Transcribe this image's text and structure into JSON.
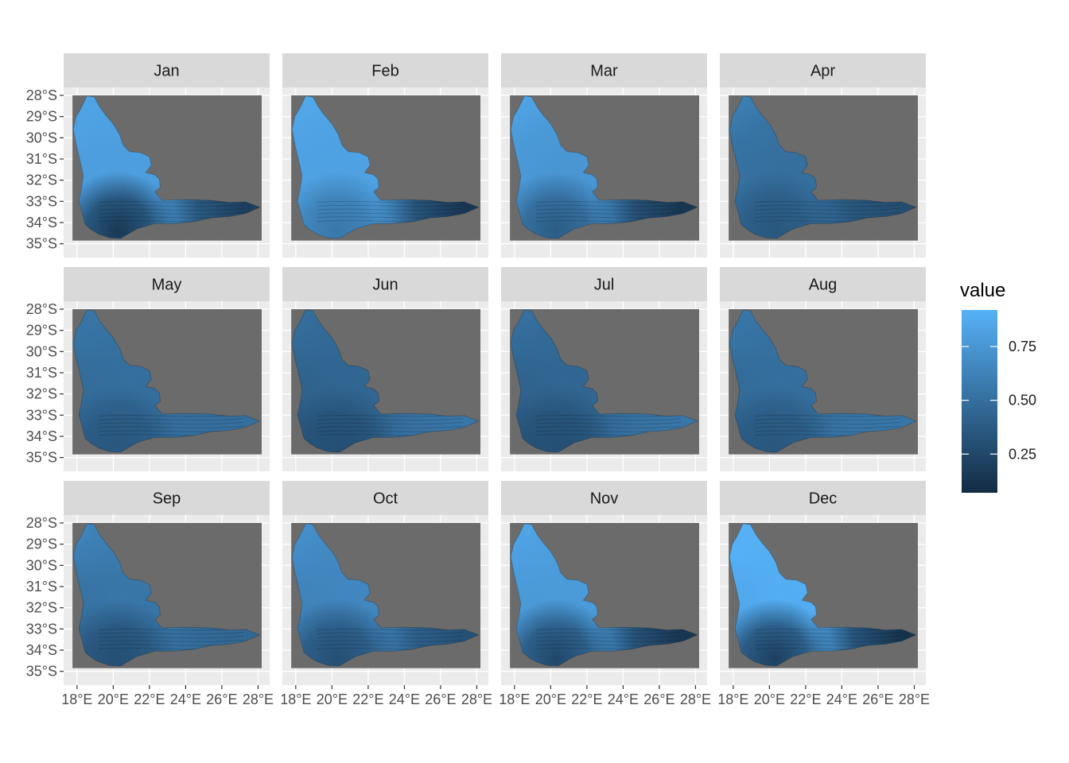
{
  "chart_data": {
    "type": "heatmap",
    "facet_by": "month",
    "facets": [
      {
        "label": "Jan",
        "west": 0.78,
        "centre": 0.8,
        "north": 0.85,
        "east": 0.18,
        "south": 0.15
      },
      {
        "label": "Feb",
        "west": 0.84,
        "centre": 0.82,
        "north": 0.87,
        "east": 0.12,
        "south": 0.55
      },
      {
        "label": "Mar",
        "west": 0.8,
        "centre": 0.75,
        "north": 0.85,
        "east": 0.12,
        "south": 0.38
      },
      {
        "label": "Apr",
        "west": 0.55,
        "centre": 0.5,
        "north": 0.62,
        "east": 0.28,
        "south": 0.35
      },
      {
        "label": "May",
        "west": 0.4,
        "centre": 0.5,
        "north": 0.55,
        "east": 0.5,
        "south": 0.35
      },
      {
        "label": "Jun",
        "west": 0.3,
        "centre": 0.45,
        "north": 0.5,
        "east": 0.55,
        "south": 0.3
      },
      {
        "label": "Jul",
        "west": 0.32,
        "centre": 0.45,
        "north": 0.52,
        "east": 0.55,
        "south": 0.3
      },
      {
        "label": "Aug",
        "west": 0.38,
        "centre": 0.5,
        "north": 0.55,
        "east": 0.55,
        "south": 0.35
      },
      {
        "label": "Sep",
        "west": 0.4,
        "centre": 0.55,
        "north": 0.65,
        "east": 0.45,
        "south": 0.3
      },
      {
        "label": "Oct",
        "west": 0.55,
        "centre": 0.65,
        "north": 0.72,
        "east": 0.3,
        "south": 0.3
      },
      {
        "label": "Nov",
        "west": 0.75,
        "centre": 0.78,
        "north": 0.85,
        "east": 0.12,
        "south": 0.25
      },
      {
        "label": "Dec",
        "west": 0.7,
        "centre": 0.9,
        "north": 0.92,
        "east": 0.1,
        "south": 0.2
      }
    ],
    "x_ticks": [
      "18°E",
      "20°E",
      "22°E",
      "24°E",
      "26°E",
      "28°E"
    ],
    "x_tick_values": [
      18,
      20,
      22,
      24,
      26,
      28
    ],
    "y_ticks": [
      "28°S",
      "29°S",
      "30°S",
      "31°S",
      "32°S",
      "33°S",
      "34°S",
      "35°S"
    ],
    "y_tick_values": [
      -28,
      -29,
      -30,
      -31,
      -32,
      -33,
      -34,
      -35
    ],
    "xlim": [
      17.7,
      28.2
    ],
    "ylim": [
      -35.05,
      -28.0
    ],
    "legend": {
      "title": "value",
      "position": "right",
      "breaks": [
        0.25,
        0.5,
        0.75
      ],
      "break_labels": [
        "0.25",
        "0.50",
        "0.75"
      ],
      "range": [
        0.07,
        0.92
      ],
      "color_low": "#132B43",
      "color_high": "#56B1F7"
    },
    "background_color": "#6b6b6b",
    "panel_color": "#ebebeb",
    "strip_color": "#d9d9d9",
    "grid": true
  }
}
